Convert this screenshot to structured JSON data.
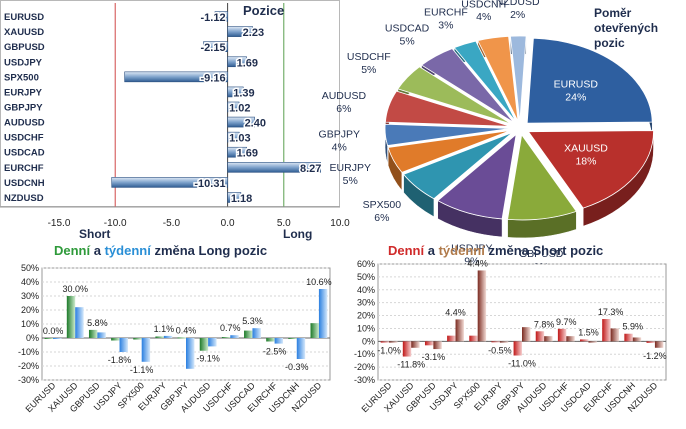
{
  "chart_data": [
    {
      "type": "bar",
      "orientation": "horizontal",
      "title": "Pozice",
      "categories": [
        "EURUSD",
        "XAUUSD",
        "GBPUSD",
        "USDJPY",
        "SPX500",
        "EURJPY",
        "GBPJPY",
        "AUDUSD",
        "USDCHF",
        "USDCAD",
        "EURCHF",
        "USDCNH",
        "NZDUSD"
      ],
      "values": [
        -1.12,
        2.23,
        -2.15,
        1.69,
        -9.16,
        1.39,
        1.02,
        2.4,
        1.03,
        1.69,
        8.27,
        -10.31,
        1.18
      ],
      "value_labels": [
        "-1.12",
        "2.23",
        "-2.15",
        "1.69",
        "-9.16",
        "1.39",
        "1.02",
        "2.40",
        "1.03",
        "1.69",
        "8.27",
        "-10.31",
        "1.18"
      ],
      "xlim": [
        -15,
        10
      ],
      "xticks": [
        "-15.0",
        "-10.0",
        "-5.0",
        "0.0",
        "5.0",
        "10.0"
      ],
      "annotations": [
        "Short",
        "Long"
      ],
      "colors": {
        "bar": "#3a6ea5",
        "bar_light": "#c9dcf0",
        "short_line": "#d04848",
        "long_line": "#5aa050"
      }
    },
    {
      "type": "pie",
      "title": "Poměr otevřených pozic",
      "labels": [
        "EURUSD",
        "XAUUSD",
        "GBPUSD",
        "USDJPY",
        "SPX500",
        "EURJPY",
        "GBPJPY",
        "AUDUSD",
        "USDCHF",
        "USDCAD",
        "EURCHF",
        "USDCNH",
        "NZDUSD"
      ],
      "values": [
        24,
        18,
        9,
        9,
        6,
        5,
        4,
        6,
        5,
        5,
        3,
        4,
        2
      ],
      "value_labels": [
        "24%",
        "18%",
        "9%",
        "9%",
        "6%",
        "5%",
        "4%",
        "6%",
        "5%",
        "5%",
        "3%",
        "4%",
        "2%"
      ],
      "colors": [
        "#2e5fa0",
        "#b8302c",
        "#8aaa3a",
        "#6a4c96",
        "#2f95b0",
        "#e07b2a",
        "#4a7ab8",
        "#c24a45",
        "#9cbb5a",
        "#7a68a8",
        "#3aa7c3",
        "#f0954a",
        "#9db9dd"
      ]
    },
    {
      "type": "bar",
      "title": "Denní a týdenní změna Long pozic",
      "title_parts": [
        "Denní",
        " a ",
        "týdenní",
        " změna Long pozic"
      ],
      "title_colors": [
        "#2e9a3a",
        "#1f2d4d",
        "#2a8fd6",
        "#1f2d4d"
      ],
      "categories": [
        "EURUSD",
        "XAUUSD",
        "GBPUSD",
        "USDJPY",
        "SPX500",
        "EURJPY",
        "GBPJPY",
        "AUDUSD",
        "USDCHF",
        "USDCAD",
        "EURCHF",
        "USDCNH",
        "NZDUSD"
      ],
      "series": [
        {
          "name": "Denní",
          "values": [
            0.0,
            30.0,
            5.8,
            -1.8,
            -1.1,
            1.1,
            0.4,
            -9.1,
            0.7,
            5.3,
            -2.5,
            -0.3,
            10.6
          ]
        },
        {
          "name": "týdenní",
          "values": [
            0.0,
            22.0,
            4.0,
            -10.0,
            -17.0,
            1.5,
            -22.0,
            -6.0,
            2.0,
            7.0,
            -4.0,
            -15.0,
            35.0
          ]
        }
      ],
      "value_labels": [
        "0.0%",
        "30.0%",
        "5.8%",
        "-1.8%",
        "-1.1%",
        "1.1%",
        "0.4%",
        "-9.1%",
        "0.7%",
        "5.3%",
        "-2.5%",
        "-0.3%",
        "10.6%"
      ],
      "ylim": [
        -30,
        50
      ],
      "yticks": [
        "50%",
        "40%",
        "30%",
        "20%",
        "10%",
        "0%",
        "-10%",
        "-20%",
        "-30%"
      ],
      "colors": {
        "daily": "#2e9a3a",
        "weekly": "#3d8fe0"
      }
    },
    {
      "type": "bar",
      "title": "Denní a týdenní změna Short pozic",
      "title_parts": [
        "Denní",
        " a ",
        "týdenní",
        " změna Short pozic"
      ],
      "title_colors": [
        "#d02a2a",
        "#1f2d4d",
        "#b07a4a",
        "#1f2d4d"
      ],
      "categories": [
        "EURUSD",
        "XAUUSD",
        "GBPUSD",
        "USDJPY",
        "SPX500",
        "EURJPY",
        "GBPJPY",
        "AUDUSD",
        "USDCHF",
        "USDCAD",
        "EURCHF",
        "USDCNH",
        "NZDUSD"
      ],
      "series": [
        {
          "name": "Denní",
          "values": [
            -1.0,
            -11.8,
            -3.1,
            4.4,
            4.4,
            -0.5,
            -11.0,
            7.8,
            9.7,
            1.5,
            17.3,
            5.9,
            -1.2
          ]
        },
        {
          "name": "týdenní",
          "values": [
            -1.0,
            -5.0,
            -6.0,
            17.0,
            55.0,
            -1.0,
            11.0,
            4.0,
            4.0,
            -1.0,
            10.0,
            3.0,
            -5.0
          ]
        }
      ],
      "value_labels": [
        "-1.0%",
        "-11.8%",
        "-3.1%",
        "4.4%",
        "4.4%",
        "-0.5%",
        "-11.0%",
        "7.8%",
        "9.7%",
        "1.5%",
        "17.3%",
        "5.9%",
        "-1.2%"
      ],
      "ylim": [
        -30,
        60
      ],
      "yticks": [
        "60%",
        "50%",
        "40%",
        "30%",
        "20%",
        "10%",
        "0%",
        "-10%",
        "-20%",
        "-30%"
      ],
      "colors": {
        "daily": "#d02a2a",
        "weekly": "#8a4a3a"
      }
    }
  ]
}
